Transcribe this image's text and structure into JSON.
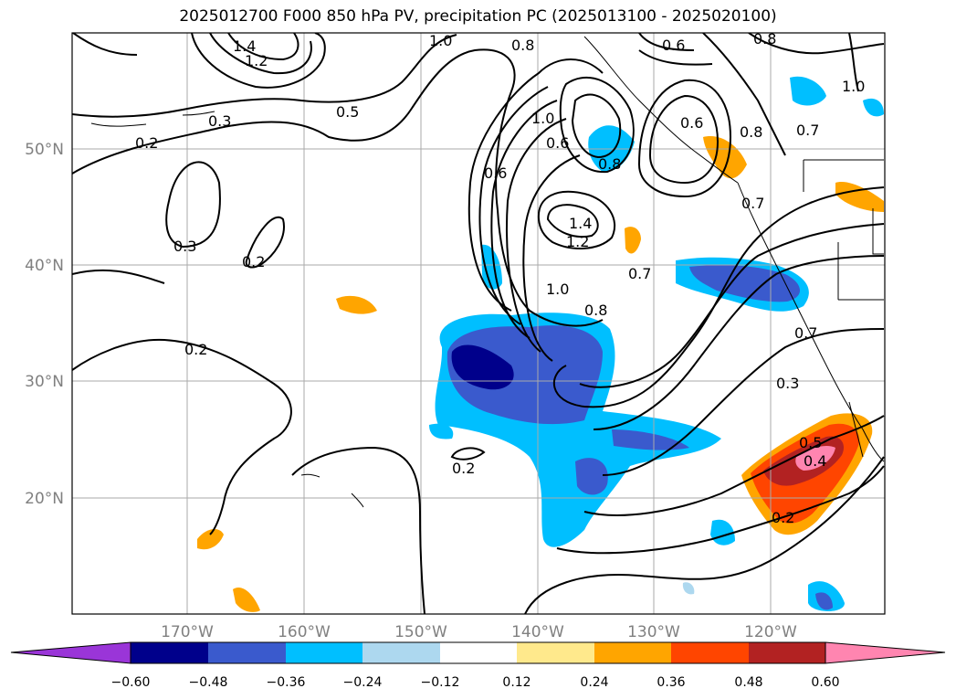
{
  "title": "2025012700 F000 850 hPa PV, precipitation PC (2025013100 - 2025020100)",
  "map": {
    "lat_labels": [
      "50°N",
      "40°N",
      "30°N",
      "20°N"
    ],
    "lon_labels": [
      "170°W",
      "160°W",
      "150°W",
      "140°W",
      "130°W",
      "120°W"
    ],
    "contour_labels": [
      "1.4",
      "1.2",
      "1.0",
      "0.8",
      "0.6",
      "0.5",
      "0.3",
      "0.2",
      "0.3",
      "0.2",
      "0.2",
      "0.6",
      "1.0",
      "0.8",
      "1.4",
      "1.2",
      "1.0",
      "0.8",
      "0.7",
      "0.7",
      "0.7",
      "0.8",
      "0.3",
      "0.2",
      "0.5",
      "0.4",
      "0.2",
      "1.0",
      "0.6",
      "0.8",
      "0.6",
      "0.7"
    ],
    "colors": {
      "land_outline": "#000000",
      "grid": "#aaaaaa",
      "tick_text": "#808080"
    }
  },
  "colorbar": {
    "ticks": [
      "−0.60",
      "−0.48",
      "−0.36",
      "−0.24",
      "−0.12",
      "0.12",
      "0.24",
      "0.36",
      "0.48",
      "0.60"
    ],
    "colors": [
      "#9a35d8",
      "#00008b",
      "#3a5acd",
      "#00bfff",
      "#add8ef",
      "#ffffff",
      "#ffe98c",
      "#ffa500",
      "#ff4500",
      "#b22222",
      "#ff85b0"
    ]
  }
}
